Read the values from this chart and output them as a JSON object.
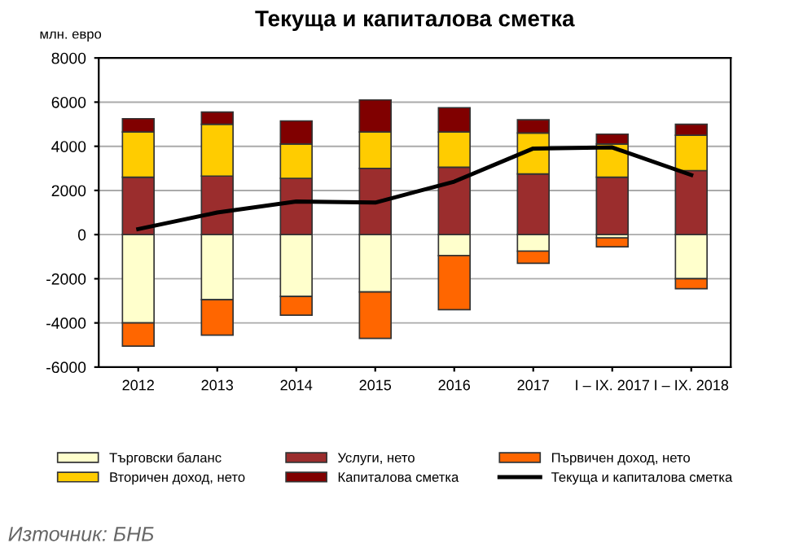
{
  "chart_data": {
    "type": "bar",
    "stacked": true,
    "title": "Текуща и капиталова сметка",
    "ylabel": "млн. евро",
    "categories": [
      "2012",
      "2013",
      "2014",
      "2015",
      "2016",
      "2017",
      "I – IX. 2017",
      "I – IX. 2018"
    ],
    "series": [
      {
        "name": "Търговски баланс",
        "color": "#ffffcc",
        "values": [
          -4000,
          -2950,
          -2800,
          -2600,
          -950,
          -750,
          -150,
          -2000
        ]
      },
      {
        "name": "Услуги, нето",
        "color": "#9b2d2d",
        "values": [
          2600,
          2650,
          2550,
          3000,
          3050,
          2750,
          2600,
          2900
        ]
      },
      {
        "name": "Първичен доход, нето",
        "color": "#ff6600",
        "values": [
          -1050,
          -1600,
          -850,
          -2100,
          -2450,
          -550,
          -400,
          -450
        ]
      },
      {
        "name": "Вторичен доход, нето",
        "color": "#ffcc00",
        "values": [
          2050,
          2350,
          1550,
          1650,
          1600,
          1850,
          1500,
          1600
        ]
      },
      {
        "name": "Капиталова сметка",
        "color": "#800000",
        "values": [
          600,
          550,
          1050,
          1450,
          1100,
          600,
          450,
          500
        ]
      },
      {
        "name": "Текуща и капиталова сметка",
        "type": "line",
        "color": "#000000",
        "values": [
          250,
          1000,
          1500,
          1450,
          2400,
          3900,
          3950,
          2700
        ]
      }
    ],
    "ylim": [
      -6000,
      8000
    ],
    "yticks": [
      -6000,
      -4000,
      -2000,
      0,
      2000,
      4000,
      6000,
      8000
    ],
    "grid": "y",
    "legend": "bottom",
    "marker": "none",
    "line_style": "solid",
    "annotations": [
      "Източник: БНБ"
    ]
  }
}
